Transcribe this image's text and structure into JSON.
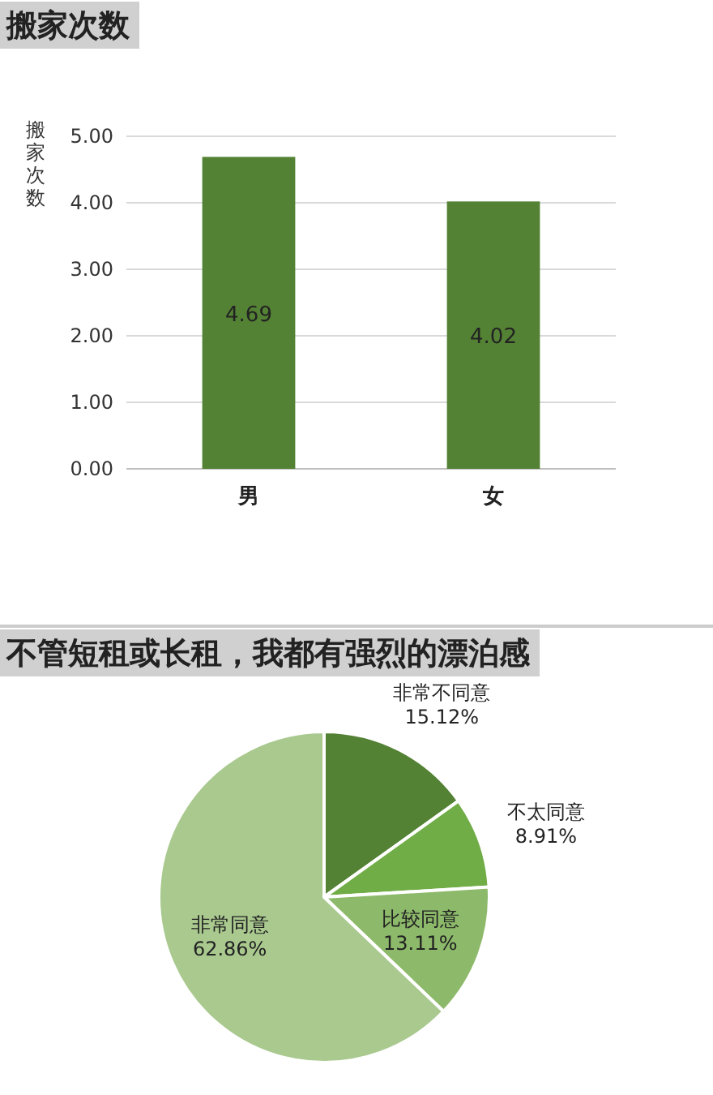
{
  "chart_data": [
    {
      "type": "bar",
      "title": "搬家次数",
      "ylabel": "搬家次数",
      "categories": [
        "男",
        "女"
      ],
      "values": [
        4.69,
        4.02
      ],
      "color": "#548235",
      "ylim": [
        0,
        5
      ],
      "yticks": [
        {
          "value": 0,
          "label": "0.00"
        },
        {
          "value": 1,
          "label": "1.00"
        },
        {
          "value": 2,
          "label": "2.00"
        },
        {
          "value": 3,
          "label": "3.00"
        },
        {
          "value": 4,
          "label": "4.00"
        },
        {
          "value": 5,
          "label": "5.00"
        }
      ],
      "grid": "y",
      "data_labels": true
    },
    {
      "type": "pie",
      "title": "不管短租或长租，我都有强烈的漂泊感",
      "categories": [
        "非常不同意",
        "不太同意",
        "比较同意",
        "非常同意"
      ],
      "values": [
        15.12,
        8.91,
        13.11,
        62.86
      ],
      "colors": [
        "#548235",
        "#70ad47",
        "#8db96a",
        "#a9c98f"
      ],
      "value_labels": [
        "15.12%",
        "8.91%",
        "13.11%",
        "62.86%"
      ]
    }
  ]
}
